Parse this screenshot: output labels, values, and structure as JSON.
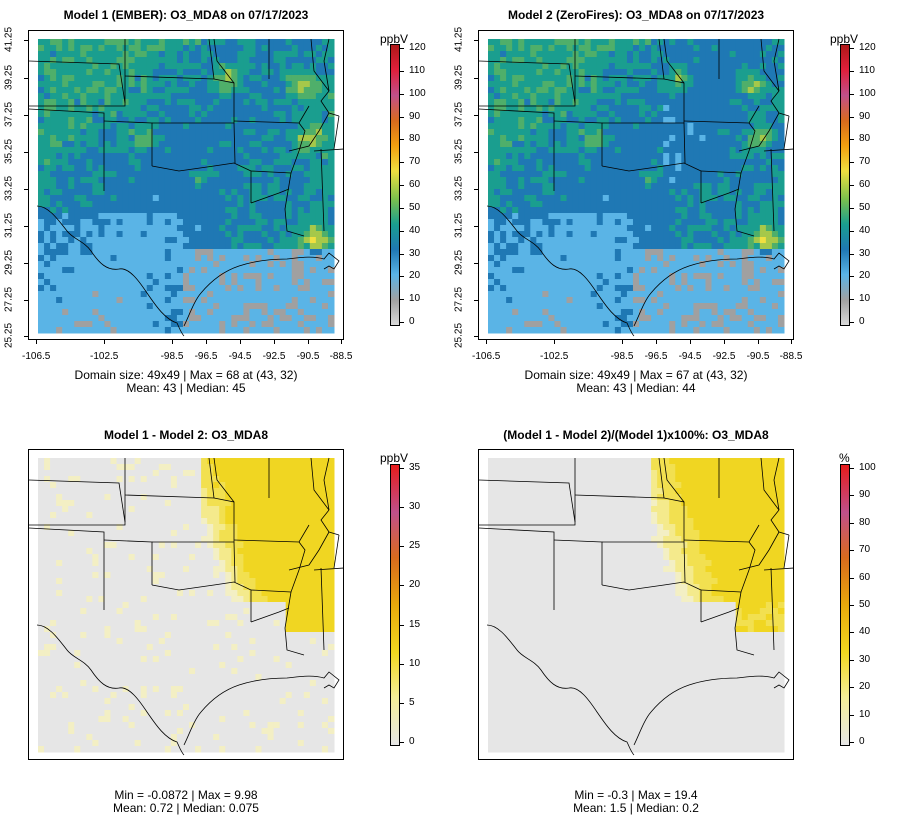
{
  "panels": [
    {
      "id": "p1",
      "title": "Model 1 (EMBER): O3_MDA8 on 07/17/2023",
      "unit": "ppbV",
      "colorbar_ticks": [
        "0",
        "10",
        "20",
        "30",
        "40",
        "50",
        "60",
        "70",
        "80",
        "90",
        "100",
        "110",
        "120"
      ],
      "colorbar_max": 120,
      "stats_line1": "Domain size: 49x49 | Max = 68 at (43, 32)",
      "stats_line2": "Mean: 43 |  Median: 45",
      "x_ticks": [
        "-106.5",
        "-102.5",
        "-98.5",
        "-96.5",
        "-94.5",
        "-92.5",
        "-90.5",
        "-88.5"
      ],
      "y_ticks": [
        "25.25",
        "27.25",
        "29.25",
        "31.25",
        "33.25",
        "35.25",
        "37.25",
        "39.25",
        "41.25"
      ],
      "field": "concentration"
    },
    {
      "id": "p2",
      "title": "Model 2 (ZeroFires): O3_MDA8 on 07/17/2023",
      "unit": "ppbV",
      "colorbar_ticks": [
        "0",
        "10",
        "20",
        "30",
        "40",
        "50",
        "60",
        "70",
        "80",
        "90",
        "100",
        "110",
        "120"
      ],
      "colorbar_max": 120,
      "stats_line1": "Domain size: 49x49 | Max = 67 at (43, 32)",
      "stats_line2": "Mean: 43 |  Median: 44",
      "x_ticks": [
        "-106.5",
        "-102.5",
        "-98.5",
        "-96.5",
        "-94.5",
        "-92.5",
        "-90.5",
        "-88.5"
      ],
      "y_ticks": [
        "25.25",
        "27.25",
        "29.25",
        "31.25",
        "33.25",
        "35.25",
        "37.25",
        "39.25",
        "41.25"
      ],
      "field": "concentration"
    },
    {
      "id": "p3",
      "title": "Model 1 - Model 2: O3_MDA8",
      "unit": "ppbV",
      "colorbar_ticks": [
        "0",
        "5",
        "10",
        "15",
        "20",
        "25",
        "30",
        "35"
      ],
      "colorbar_max": 35,
      "stats_line1": "Min = -0.0872 | Max = 9.98",
      "stats_line2": "Mean: 0.72 |  Median: 0.075",
      "field": "difference"
    },
    {
      "id": "p4",
      "title": "(Model 1 - Model 2)/(Model 1)x100%: O3_MDA8",
      "unit": "%",
      "colorbar_ticks": [
        "0",
        "10",
        "20",
        "30",
        "40",
        "50",
        "60",
        "70",
        "80",
        "90",
        "100"
      ],
      "colorbar_max": 100,
      "stats_line1": "Min = -0.3 | Max = 19.4",
      "stats_line2": "Mean: 1.5 |  Median: 0.2",
      "field": "percent"
    }
  ],
  "colors": {
    "conc_scale": [
      "#d9d9d9",
      "#a0a0a0",
      "#5ab4e6",
      "#1f78b4",
      "#1a9e8f",
      "#7cc04d",
      "#f0e040",
      "#f2a010",
      "#d86a1e",
      "#c0508a",
      "#e0203c",
      "#b01818"
    ],
    "diff_scale": [
      "#e6e6e6",
      "#f5ee98",
      "#f2d820",
      "#e8a80c",
      "#d86a1e",
      "#c0508a",
      "#e81c1c"
    ]
  }
}
